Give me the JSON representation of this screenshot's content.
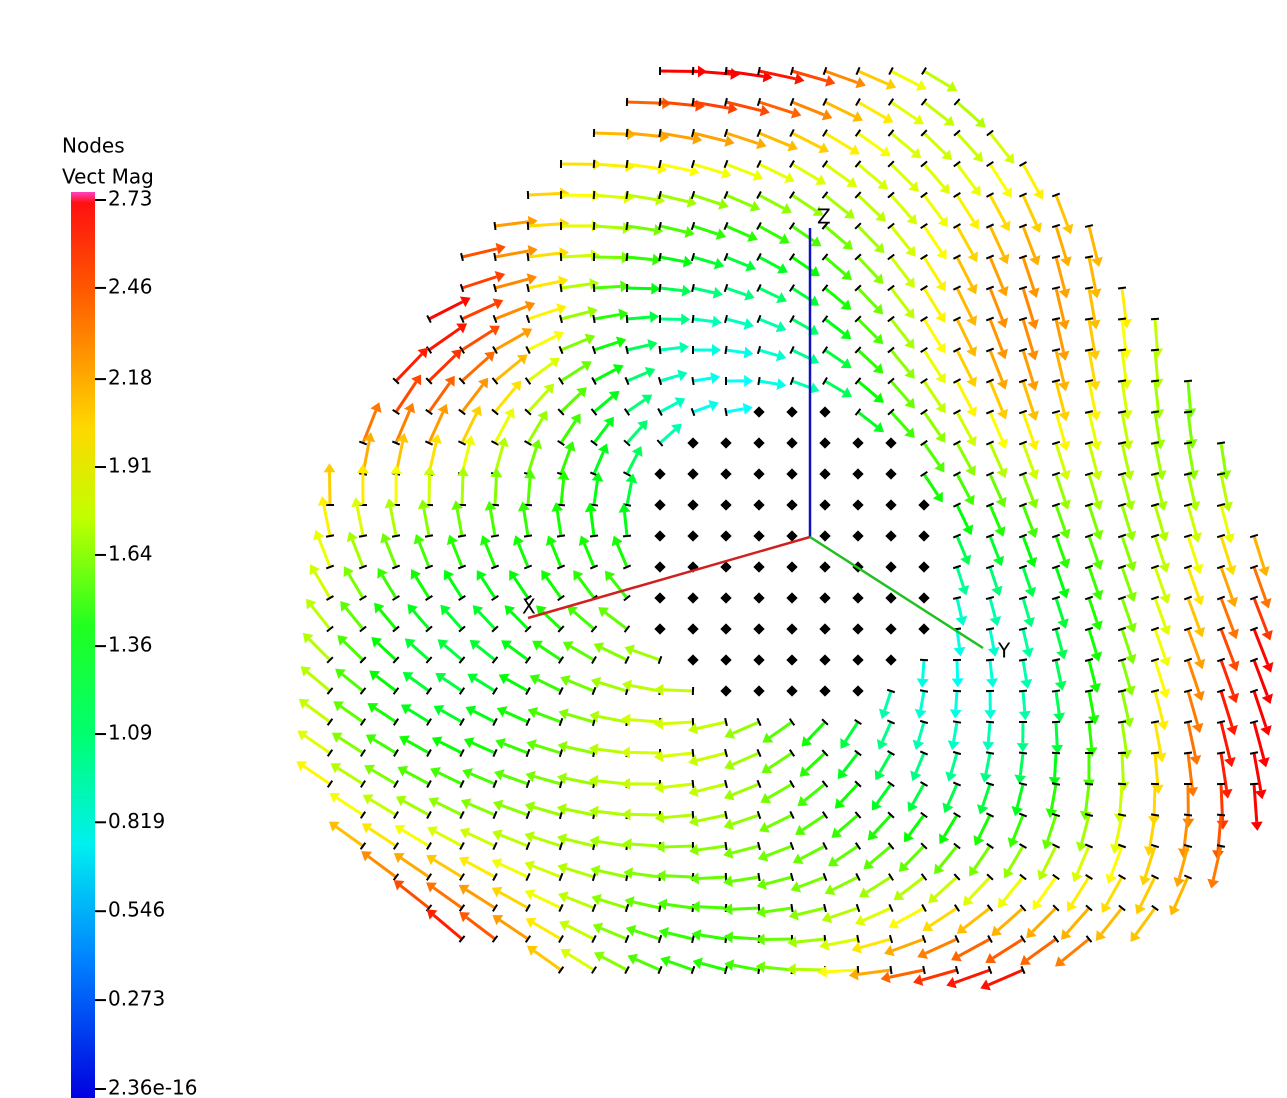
{
  "legend": {
    "title": "Nodes",
    "subtitle": "Vect Mag",
    "ticks": [
      2.73,
      2.46,
      2.18,
      1.91,
      1.64,
      1.36,
      1.09,
      0.819,
      0.546,
      0.273,
      2.36e-16
    ]
  },
  "axes": {
    "x": "X",
    "y": "Y",
    "z": "Z"
  }
}
